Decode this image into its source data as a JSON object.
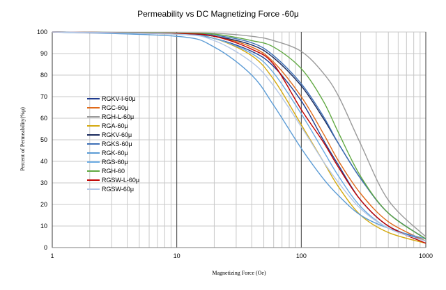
{
  "chart_data": {
    "type": "line",
    "title": "Permeability vs DC Magnetizing Force  -60μ",
    "xlabel": "Magnetizing Force  (Oe)",
    "ylabel": "Percent of Permeability(%μ)",
    "xscale": "log",
    "xlim": [
      1,
      1000
    ],
    "ylim": [
      0,
      100
    ],
    "x_ticks": [
      "1",
      "10",
      "100",
      "1000"
    ],
    "y_ticks": [
      "0",
      "10",
      "20",
      "30",
      "40",
      "50",
      "60",
      "70",
      "80",
      "90",
      "100"
    ],
    "grid": true,
    "legend_position": "left",
    "series": [
      {
        "name": "RGKV-I-60μ",
        "color": "#1f3b8f",
        "x": [
          1,
          10,
          20,
          40,
          60,
          100,
          150,
          200,
          300,
          500,
          1000
        ],
        "y": [
          100,
          99,
          97,
          91,
          84,
          68,
          50,
          38,
          22,
          10,
          3
        ]
      },
      {
        "name": "RGC-60μ",
        "color": "#e06a1a",
        "x": [
          1,
          10,
          20,
          40,
          60,
          100,
          150,
          200,
          300,
          500,
          1000
        ],
        "y": [
          100,
          99.3,
          98,
          93,
          86,
          70,
          53,
          40,
          25,
          12,
          3
        ]
      },
      {
        "name": "RGH-L-60μ",
        "color": "#9a9a9a",
        "x": [
          1,
          10,
          20,
          40,
          60,
          100,
          150,
          200,
          300,
          500,
          1000
        ],
        "y": [
          100,
          99.6,
          99.4,
          98,
          96,
          91,
          81,
          70,
          48,
          22,
          5
        ]
      },
      {
        "name": "RGA-60μ",
        "color": "#d4a90e",
        "x": [
          1,
          10,
          20,
          40,
          60,
          100,
          150,
          200,
          300,
          500,
          1000
        ],
        "y": [
          100,
          99,
          97,
          89,
          78,
          57,
          40,
          28,
          15,
          7,
          2
        ]
      },
      {
        "name": "RGKV-60μ",
        "color": "#17285c",
        "x": [
          1,
          10,
          20,
          40,
          60,
          100,
          150,
          200,
          300,
          500,
          1000
        ],
        "y": [
          100,
          99.2,
          98,
          94,
          88,
          75,
          60,
          48,
          32,
          16,
          4
        ]
      },
      {
        "name": "RGKS-60μ",
        "color": "#3d6fb6",
        "x": [
          1,
          10,
          20,
          40,
          60,
          100,
          150,
          200,
          300,
          500,
          1000
        ],
        "y": [
          100,
          99.4,
          98.5,
          95,
          89,
          76,
          61,
          48,
          32,
          16,
          4
        ]
      },
      {
        "name": "RGK-60μ",
        "color": "#5b9bd5",
        "x": [
          1,
          10,
          20,
          40,
          60,
          100,
          150,
          200,
          300,
          500,
          1000
        ],
        "y": [
          100,
          98,
          93,
          80,
          66,
          46,
          32,
          24,
          15,
          9,
          4
        ]
      },
      {
        "name": "RGS-60μ",
        "color": "#6aaae2",
        "x": [
          1,
          10,
          20,
          40,
          60,
          100,
          150,
          200,
          300,
          500,
          1000
        ],
        "y": [
          100,
          99,
          97,
          90,
          81,
          62,
          45,
          33,
          19,
          9,
          3
        ]
      },
      {
        "name": "RGH-60",
        "color": "#5fa840",
        "x": [
          1,
          10,
          20,
          40,
          60,
          100,
          150,
          200,
          300,
          500,
          1000
        ],
        "y": [
          100,
          99.5,
          99,
          96,
          93,
          83,
          68,
          53,
          33,
          16,
          4
        ]
      },
      {
        "name": "RGSW-L-60μ",
        "color": "#c00000",
        "x": [
          1,
          10,
          20,
          40,
          60,
          100,
          150,
          200,
          300,
          500,
          1000
        ],
        "y": [
          100,
          99.3,
          98,
          92,
          85,
          64,
          49,
          37,
          22,
          10,
          2
        ]
      },
      {
        "name": "RGSW-60μ",
        "color": "#b4c7e7",
        "x": [
          1,
          10,
          20,
          40,
          60,
          100,
          150,
          200,
          300,
          500,
          1000
        ],
        "y": [
          100,
          99,
          96,
          86,
          75,
          56,
          40,
          30,
          18,
          9,
          3
        ]
      }
    ]
  }
}
